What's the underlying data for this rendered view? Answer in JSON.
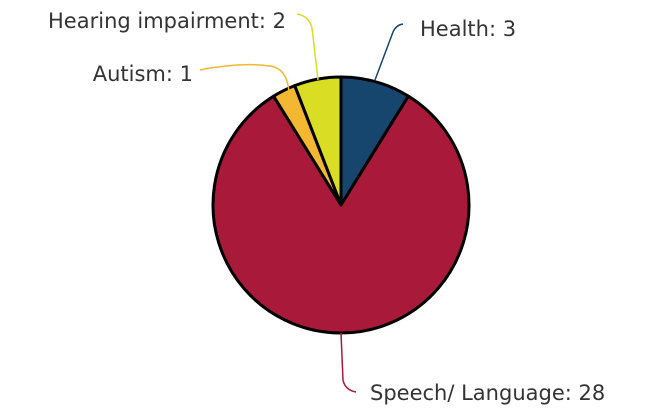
{
  "chart_data": {
    "type": "pie",
    "values": [
      3,
      28,
      1,
      2
    ],
    "value_labels": [
      "Health: 3",
      "Speech/ Language: 28",
      "Autism: 1",
      "Hearing impairment: 2"
    ],
    "colors": [
      "#16456e",
      "#a8193a",
      "#f3b731",
      "#d9dd23"
    ]
  }
}
